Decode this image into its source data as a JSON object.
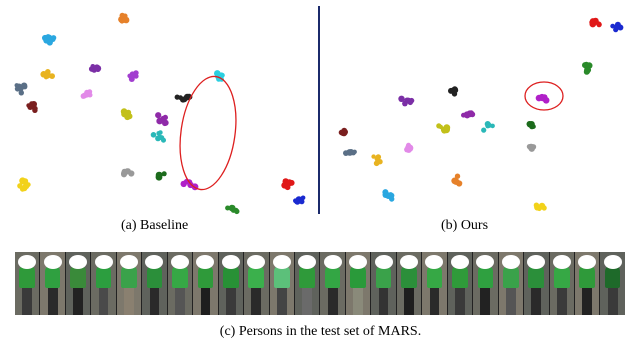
{
  "captions": {
    "baseline": "(a) Baseline",
    "ours": "(b) Ours",
    "persons": "(c) Persons in the test set of MARS."
  },
  "colors": {
    "divider": "#1b2a6b",
    "highlight_ellipse": "#dd1f1f"
  },
  "panels": [
    {
      "name": "baseline",
      "clusters": [
        {
          "color": "#e6812a"
        },
        {
          "color": "#2aa7e0"
        },
        {
          "color": "#5a6f86"
        },
        {
          "color": "#e8b320"
        },
        {
          "color": "#7a1f1f"
        },
        {
          "color": "#7b2fa6"
        },
        {
          "color": "#a23fcf"
        },
        {
          "color": "#e28ae8"
        },
        {
          "color": "#c2c01a"
        },
        {
          "color": "#222222"
        },
        {
          "color": "#2acfe0"
        },
        {
          "color": "#8f2aa8"
        },
        {
          "color": "#2ab8b8"
        },
        {
          "color": "#999999"
        },
        {
          "color": "#1c6b1c"
        },
        {
          "color": "#b020c8"
        },
        {
          "color": "#2a8a2a"
        },
        {
          "color": "#f2d21a"
        },
        {
          "color": "#e01818"
        },
        {
          "color": "#1a2ad0"
        }
      ]
    },
    {
      "name": "ours",
      "clusters": [
        {
          "color": "#e01818"
        },
        {
          "color": "#1a2ad0"
        },
        {
          "color": "#2a8a2a"
        },
        {
          "color": "#222222"
        },
        {
          "color": "#b020c8"
        },
        {
          "color": "#7b2fa6"
        },
        {
          "color": "#c2c01a"
        },
        {
          "color": "#8f2aa8"
        },
        {
          "color": "#2ab8b8"
        },
        {
          "color": "#7a1f1f"
        },
        {
          "color": "#5a6f86"
        },
        {
          "color": "#e28ae8"
        },
        {
          "color": "#e8b320"
        },
        {
          "color": "#1c6b1c"
        },
        {
          "color": "#999999"
        },
        {
          "color": "#2aa7e0"
        },
        {
          "color": "#e6812a"
        },
        {
          "color": "#f2d21a"
        }
      ]
    }
  ],
  "persons": [
    {
      "shirt": "#2f9a3a",
      "legs": "#3a3a3a"
    },
    {
      "shirt": "#2fa040",
      "legs": "#2a2a2a"
    },
    {
      "shirt": "#3a8a3a",
      "legs": "#222222"
    },
    {
      "shirt": "#2c9e3f",
      "legs": "#4a4a4a"
    },
    {
      "shirt": "#3aa24a",
      "legs": "#8a8070"
    },
    {
      "shirt": "#2b8f3a",
      "legs": "#2a2a2a"
    },
    {
      "shirt": "#36a845",
      "legs": "#555555"
    },
    {
      "shirt": "#2f9a3a",
      "legs": "#1e1e1e"
    },
    {
      "shirt": "#289136",
      "legs": "#3a3a3a"
    },
    {
      "shirt": "#3bb04c",
      "legs": "#2a2a2a"
    },
    {
      "shirt": "#5cc07a",
      "legs": "#444444"
    },
    {
      "shirt": "#2f9a3a",
      "legs": "#6a6a6a"
    },
    {
      "shirt": "#33a644",
      "legs": "#2a2a2a"
    },
    {
      "shirt": "#2a9a3a",
      "legs": "#8a8a7a"
    },
    {
      "shirt": "#3aa24a",
      "legs": "#333333"
    },
    {
      "shirt": "#2b8f3a",
      "legs": "#1e1e1e"
    },
    {
      "shirt": "#36a845",
      "legs": "#2a2a2a"
    },
    {
      "shirt": "#2f9a3a",
      "legs": "#3a3a3a"
    },
    {
      "shirt": "#2fa040",
      "legs": "#222222"
    },
    {
      "shirt": "#3aa24a",
      "legs": "#555555"
    },
    {
      "shirt": "#2b8f3a",
      "legs": "#2a2a2a"
    },
    {
      "shirt": "#36a845",
      "legs": "#3a3a3a"
    },
    {
      "shirt": "#2f9a3a",
      "legs": "#222222"
    },
    {
      "shirt": "#1e6a2a",
      "legs": "#3a3a3a"
    }
  ]
}
